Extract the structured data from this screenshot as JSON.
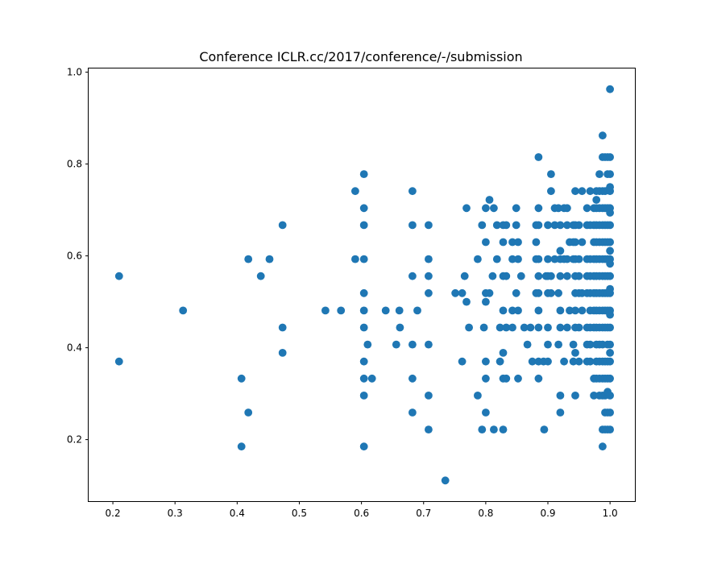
{
  "chart_data": {
    "type": "scatter",
    "title": "Conference ICLR.cc/2017/conference/-/submission",
    "xlabel": "",
    "ylabel": "",
    "xlim": [
      0.161,
      1.04
    ],
    "ylim": [
      0.066,
      1.008
    ],
    "x_ticks": [
      "0.2",
      "0.3",
      "0.4",
      "0.5",
      "0.6",
      "0.7",
      "0.8",
      "0.9",
      "1.0"
    ],
    "y_ticks": [
      "0.2",
      "0.4",
      "0.6",
      "0.8",
      "1.0"
    ],
    "grid": false,
    "color": "#1f77b4",
    "points": [
      [
        0.21,
        0.556
      ],
      [
        0.21,
        0.37
      ],
      [
        0.313,
        0.481
      ],
      [
        0.407,
        0.333
      ],
      [
        0.407,
        0.185
      ],
      [
        0.418,
        0.593
      ],
      [
        0.418,
        0.259
      ],
      [
        0.438,
        0.556
      ],
      [
        0.452,
        0.593
      ],
      [
        0.473,
        0.667
      ],
      [
        0.473,
        0.444
      ],
      [
        0.473,
        0.389
      ],
      [
        0.542,
        0.481
      ],
      [
        0.567,
        0.481
      ],
      [
        0.59,
        0.741
      ],
      [
        0.59,
        0.593
      ],
      [
        0.604,
        0.778
      ],
      [
        0.604,
        0.704
      ],
      [
        0.604,
        0.667
      ],
      [
        0.604,
        0.593
      ],
      [
        0.604,
        0.519
      ],
      [
        0.604,
        0.481
      ],
      [
        0.604,
        0.444
      ],
      [
        0.604,
        0.37
      ],
      [
        0.604,
        0.333
      ],
      [
        0.604,
        0.296
      ],
      [
        0.604,
        0.185
      ],
      [
        0.61,
        0.407
      ],
      [
        0.617,
        0.333
      ],
      [
        0.639,
        0.481
      ],
      [
        0.656,
        0.407
      ],
      [
        0.661,
        0.481
      ],
      [
        0.662,
        0.444
      ],
      [
        0.682,
        0.741
      ],
      [
        0.682,
        0.667
      ],
      [
        0.682,
        0.556
      ],
      [
        0.682,
        0.407
      ],
      [
        0.682,
        0.333
      ],
      [
        0.682,
        0.259
      ],
      [
        0.69,
        0.481
      ],
      [
        0.708,
        0.667
      ],
      [
        0.708,
        0.593
      ],
      [
        0.708,
        0.556
      ],
      [
        0.708,
        0.519
      ],
      [
        0.708,
        0.407
      ],
      [
        0.708,
        0.296
      ],
      [
        0.708,
        0.222
      ],
      [
        0.735,
        0.111
      ],
      [
        0.751,
        0.519
      ],
      [
        0.762,
        0.519
      ],
      [
        0.762,
        0.37
      ],
      [
        0.766,
        0.556
      ],
      [
        0.769,
        0.5
      ],
      [
        0.769,
        0.704
      ],
      [
        0.773,
        0.444
      ],
      [
        0.787,
        0.593
      ],
      [
        0.787,
        0.296
      ],
      [
        0.794,
        0.667
      ],
      [
        0.794,
        0.222
      ],
      [
        0.797,
        0.444
      ],
      [
        0.8,
        0.704
      ],
      [
        0.8,
        0.63
      ],
      [
        0.8,
        0.519
      ],
      [
        0.8,
        0.5
      ],
      [
        0.8,
        0.37
      ],
      [
        0.8,
        0.333
      ],
      [
        0.8,
        0.259
      ],
      [
        0.806,
        0.722
      ],
      [
        0.806,
        0.519
      ],
      [
        0.811,
        0.556
      ],
      [
        0.813,
        0.704
      ],
      [
        0.813,
        0.222
      ],
      [
        0.818,
        0.667
      ],
      [
        0.818,
        0.593
      ],
      [
        0.823,
        0.444
      ],
      [
        0.823,
        0.37
      ],
      [
        0.828,
        0.667
      ],
      [
        0.828,
        0.63
      ],
      [
        0.828,
        0.556
      ],
      [
        0.828,
        0.481
      ],
      [
        0.828,
        0.389
      ],
      [
        0.828,
        0.333
      ],
      [
        0.828,
        0.222
      ],
      [
        0.833,
        0.667
      ],
      [
        0.833,
        0.556
      ],
      [
        0.833,
        0.444
      ],
      [
        0.833,
        0.333
      ],
      [
        0.843,
        0.63
      ],
      [
        0.843,
        0.593
      ],
      [
        0.843,
        0.481
      ],
      [
        0.843,
        0.444
      ],
      [
        0.849,
        0.704
      ],
      [
        0.849,
        0.667
      ],
      [
        0.849,
        0.519
      ],
      [
        0.852,
        0.63
      ],
      [
        0.852,
        0.593
      ],
      [
        0.852,
        0.481
      ],
      [
        0.852,
        0.333
      ],
      [
        0.857,
        0.556
      ],
      [
        0.862,
        0.444
      ],
      [
        0.867,
        0.407
      ],
      [
        0.872,
        0.444
      ],
      [
        0.875,
        0.37
      ],
      [
        0.881,
        0.667
      ],
      [
        0.881,
        0.593
      ],
      [
        0.881,
        0.63
      ],
      [
        0.881,
        0.519
      ],
      [
        0.885,
        0.815
      ],
      [
        0.885,
        0.704
      ],
      [
        0.885,
        0.667
      ],
      [
        0.885,
        0.593
      ],
      [
        0.885,
        0.556
      ],
      [
        0.885,
        0.519
      ],
      [
        0.885,
        0.481
      ],
      [
        0.885,
        0.444
      ],
      [
        0.885,
        0.37
      ],
      [
        0.885,
        0.333
      ],
      [
        0.893,
        0.37
      ],
      [
        0.894,
        0.222
      ],
      [
        0.897,
        0.556
      ],
      [
        0.9,
        0.667
      ],
      [
        0.9,
        0.593
      ],
      [
        0.9,
        0.556
      ],
      [
        0.9,
        0.519
      ],
      [
        0.9,
        0.444
      ],
      [
        0.9,
        0.407
      ],
      [
        0.9,
        0.37
      ],
      [
        0.905,
        0.778
      ],
      [
        0.905,
        0.741
      ],
      [
        0.905,
        0.556
      ],
      [
        0.905,
        0.519
      ],
      [
        0.911,
        0.704
      ],
      [
        0.911,
        0.667
      ],
      [
        0.911,
        0.593
      ],
      [
        0.917,
        0.704
      ],
      [
        0.917,
        0.519
      ],
      [
        0.917,
        0.407
      ],
      [
        0.92,
        0.667
      ],
      [
        0.92,
        0.611
      ],
      [
        0.92,
        0.593
      ],
      [
        0.92,
        0.556
      ],
      [
        0.92,
        0.481
      ],
      [
        0.92,
        0.444
      ],
      [
        0.92,
        0.296
      ],
      [
        0.92,
        0.259
      ],
      [
        0.926,
        0.704
      ],
      [
        0.926,
        0.593
      ],
      [
        0.926,
        0.37
      ],
      [
        0.931,
        0.704
      ],
      [
        0.931,
        0.667
      ],
      [
        0.931,
        0.593
      ],
      [
        0.931,
        0.556
      ],
      [
        0.931,
        0.444
      ],
      [
        0.935,
        0.63
      ],
      [
        0.935,
        0.481
      ],
      [
        0.941,
        0.667
      ],
      [
        0.941,
        0.63
      ],
      [
        0.941,
        0.593
      ],
      [
        0.941,
        0.407
      ],
      [
        0.941,
        0.37
      ],
      [
        0.944,
        0.741
      ],
      [
        0.944,
        0.667
      ],
      [
        0.944,
        0.63
      ],
      [
        0.944,
        0.593
      ],
      [
        0.944,
        0.556
      ],
      [
        0.944,
        0.519
      ],
      [
        0.944,
        0.481
      ],
      [
        0.944,
        0.444
      ],
      [
        0.944,
        0.389
      ],
      [
        0.944,
        0.296
      ],
      [
        0.95,
        0.667
      ],
      [
        0.95,
        0.593
      ],
      [
        0.95,
        0.556
      ],
      [
        0.95,
        0.519
      ],
      [
        0.95,
        0.444
      ],
      [
        0.95,
        0.37
      ],
      [
        0.955,
        0.741
      ],
      [
        0.955,
        0.63
      ],
      [
        0.955,
        0.519
      ],
      [
        0.955,
        0.481
      ],
      [
        0.963,
        0.704
      ],
      [
        0.963,
        0.667
      ],
      [
        0.963,
        0.593
      ],
      [
        0.963,
        0.556
      ],
      [
        0.963,
        0.519
      ],
      [
        0.963,
        0.444
      ],
      [
        0.963,
        0.407
      ],
      [
        0.963,
        0.37
      ],
      [
        0.968,
        0.741
      ],
      [
        0.968,
        0.667
      ],
      [
        0.968,
        0.593
      ],
      [
        0.968,
        0.556
      ],
      [
        0.968,
        0.519
      ],
      [
        0.968,
        0.481
      ],
      [
        0.968,
        0.444
      ],
      [
        0.968,
        0.407
      ],
      [
        0.968,
        0.37
      ],
      [
        0.974,
        0.704
      ],
      [
        0.974,
        0.667
      ],
      [
        0.974,
        0.63
      ],
      [
        0.974,
        0.593
      ],
      [
        0.974,
        0.556
      ],
      [
        0.974,
        0.519
      ],
      [
        0.974,
        0.481
      ],
      [
        0.974,
        0.444
      ],
      [
        0.974,
        0.333
      ],
      [
        0.974,
        0.296
      ],
      [
        0.978,
        0.741
      ],
      [
        0.978,
        0.722
      ],
      [
        0.978,
        0.704
      ],
      [
        0.978,
        0.667
      ],
      [
        0.978,
        0.63
      ],
      [
        0.978,
        0.593
      ],
      [
        0.978,
        0.556
      ],
      [
        0.978,
        0.519
      ],
      [
        0.978,
        0.481
      ],
      [
        0.978,
        0.444
      ],
      [
        0.978,
        0.407
      ],
      [
        0.978,
        0.37
      ],
      [
        0.978,
        0.333
      ],
      [
        0.983,
        0.778
      ],
      [
        0.983,
        0.741
      ],
      [
        0.983,
        0.704
      ],
      [
        0.983,
        0.667
      ],
      [
        0.983,
        0.63
      ],
      [
        0.983,
        0.593
      ],
      [
        0.983,
        0.556
      ],
      [
        0.983,
        0.519
      ],
      [
        0.983,
        0.481
      ],
      [
        0.983,
        0.444
      ],
      [
        0.983,
        0.407
      ],
      [
        0.983,
        0.37
      ],
      [
        0.983,
        0.333
      ],
      [
        0.983,
        0.296
      ],
      [
        0.988,
        0.862
      ],
      [
        0.988,
        0.815
      ],
      [
        0.988,
        0.741
      ],
      [
        0.988,
        0.704
      ],
      [
        0.988,
        0.667
      ],
      [
        0.988,
        0.63
      ],
      [
        0.988,
        0.593
      ],
      [
        0.988,
        0.556
      ],
      [
        0.988,
        0.519
      ],
      [
        0.988,
        0.481
      ],
      [
        0.988,
        0.444
      ],
      [
        0.988,
        0.407
      ],
      [
        0.988,
        0.37
      ],
      [
        0.988,
        0.333
      ],
      [
        0.988,
        0.296
      ],
      [
        0.988,
        0.222
      ],
      [
        0.988,
        0.185
      ],
      [
        0.992,
        0.815
      ],
      [
        0.992,
        0.741
      ],
      [
        0.992,
        0.704
      ],
      [
        0.992,
        0.667
      ],
      [
        0.992,
        0.63
      ],
      [
        0.992,
        0.593
      ],
      [
        0.992,
        0.556
      ],
      [
        0.992,
        0.519
      ],
      [
        0.992,
        0.481
      ],
      [
        0.992,
        0.444
      ],
      [
        0.992,
        0.37
      ],
      [
        0.992,
        0.333
      ],
      [
        0.992,
        0.296
      ],
      [
        0.992,
        0.259
      ],
      [
        0.992,
        0.222
      ],
      [
        0.996,
        0.815
      ],
      [
        0.996,
        0.778
      ],
      [
        0.996,
        0.704
      ],
      [
        0.996,
        0.667
      ],
      [
        0.996,
        0.63
      ],
      [
        0.996,
        0.593
      ],
      [
        0.996,
        0.556
      ],
      [
        0.996,
        0.519
      ],
      [
        0.996,
        0.481
      ],
      [
        0.996,
        0.444
      ],
      [
        0.996,
        0.407
      ],
      [
        0.996,
        0.37
      ],
      [
        0.996,
        0.333
      ],
      [
        0.996,
        0.304
      ],
      [
        0.996,
        0.259
      ],
      [
        0.996,
        0.222
      ],
      [
        1.0,
        0.963
      ],
      [
        1.0,
        0.815
      ],
      [
        1.0,
        0.778
      ],
      [
        1.0,
        0.75
      ],
      [
        1.0,
        0.741
      ],
      [
        1.0,
        0.704
      ],
      [
        1.0,
        0.694
      ],
      [
        1.0,
        0.667
      ],
      [
        1.0,
        0.63
      ],
      [
        1.0,
        0.611
      ],
      [
        1.0,
        0.593
      ],
      [
        1.0,
        0.583
      ],
      [
        1.0,
        0.556
      ],
      [
        1.0,
        0.528
      ],
      [
        1.0,
        0.519
      ],
      [
        1.0,
        0.481
      ],
      [
        1.0,
        0.472
      ],
      [
        1.0,
        0.444
      ],
      [
        1.0,
        0.407
      ],
      [
        1.0,
        0.389
      ],
      [
        1.0,
        0.37
      ],
      [
        1.0,
        0.333
      ],
      [
        1.0,
        0.296
      ],
      [
        1.0,
        0.259
      ],
      [
        1.0,
        0.222
      ]
    ]
  }
}
